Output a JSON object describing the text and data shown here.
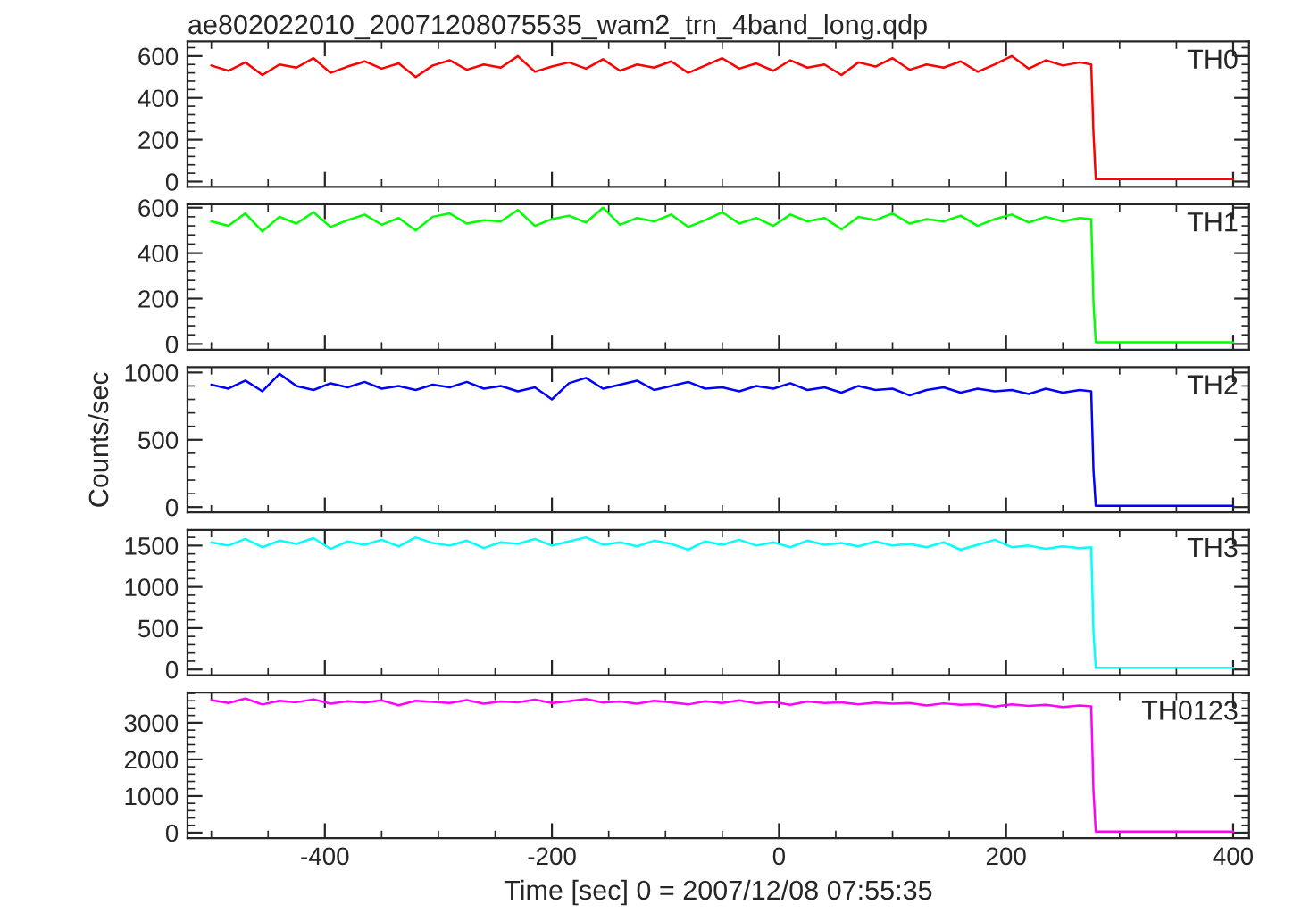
{
  "chart_data": [
    {
      "type": "line",
      "title": "ae802022010_20071208075535_wam2_trn_4band_long.qdp",
      "x": [
        -500,
        -485,
        -470,
        -455,
        -440,
        -425,
        -410,
        -395,
        -380,
        -365,
        -350,
        -335,
        -320,
        -305,
        -290,
        -275,
        -260,
        -245,
        -230,
        -215,
        -200,
        -185,
        -170,
        -155,
        -140,
        -125,
        -110,
        -95,
        -80,
        -65,
        -50,
        -35,
        -20,
        -5,
        10,
        25,
        40,
        55,
        70,
        85,
        100,
        115,
        130,
        145,
        160,
        175,
        190,
        205,
        220,
        235,
        250,
        265,
        275,
        277,
        279,
        400
      ],
      "xlim": [
        -521,
        414
      ],
      "xticks": [
        {
          "value": -400,
          "label": null
        },
        {
          "value": -200,
          "label": null
        },
        {
          "value": 0,
          "label": null
        },
        {
          "value": 200,
          "label": null
        },
        {
          "value": 400,
          "label": null
        }
      ],
      "ylim": [
        -25,
        670
      ],
      "yticks": [
        0,
        200,
        400,
        600
      ],
      "tick_labels": "y",
      "series": [
        {
          "name": "TH0",
          "color": "#ff0000",
          "values": [
            555,
            530,
            570,
            510,
            560,
            545,
            590,
            520,
            550,
            575,
            540,
            565,
            500,
            555,
            580,
            535,
            560,
            545,
            600,
            525,
            550,
            570,
            540,
            585,
            530,
            560,
            545,
            575,
            520,
            555,
            590,
            540,
            565,
            530,
            580,
            545,
            560,
            510,
            570,
            550,
            590,
            535,
            560,
            545,
            575,
            525,
            560,
            600,
            540,
            580,
            555,
            570,
            560,
            230,
            12,
            12
          ]
        }
      ]
    },
    {
      "type": "line",
      "x": [
        -500,
        -485,
        -470,
        -455,
        -440,
        -425,
        -410,
        -395,
        -380,
        -365,
        -350,
        -335,
        -320,
        -305,
        -290,
        -275,
        -260,
        -245,
        -230,
        -215,
        -200,
        -185,
        -170,
        -155,
        -140,
        -125,
        -110,
        -95,
        -80,
        -65,
        -50,
        -35,
        -20,
        -5,
        10,
        25,
        40,
        55,
        70,
        85,
        100,
        115,
        130,
        145,
        160,
        175,
        190,
        205,
        220,
        235,
        250,
        265,
        275,
        277,
        279,
        400
      ],
      "xlim": [
        -521,
        414
      ],
      "xticks": [
        {
          "value": -400,
          "label": null
        },
        {
          "value": -200,
          "label": null
        },
        {
          "value": 0,
          "label": null
        },
        {
          "value": 200,
          "label": null
        },
        {
          "value": 400,
          "label": null
        }
      ],
      "ylim": [
        -25,
        615
      ],
      "yticks": [
        0,
        200,
        400,
        600
      ],
      "tick_labels": "y",
      "series": [
        {
          "name": "TH1",
          "color": "#00ff00",
          "values": [
            540,
            520,
            575,
            495,
            560,
            530,
            580,
            515,
            545,
            570,
            525,
            555,
            500,
            560,
            575,
            530,
            545,
            540,
            590,
            520,
            550,
            565,
            535,
            600,
            525,
            555,
            540,
            570,
            515,
            545,
            580,
            530,
            555,
            520,
            570,
            540,
            555,
            505,
            560,
            545,
            575,
            530,
            550,
            540,
            565,
            520,
            550,
            570,
            535,
            560,
            540,
            555,
            550,
            180,
            8,
            8
          ]
        }
      ]
    },
    {
      "type": "line",
      "ylabel": "Counts/sec",
      "x": [
        -500,
        -485,
        -470,
        -455,
        -440,
        -425,
        -410,
        -395,
        -380,
        -365,
        -350,
        -335,
        -320,
        -305,
        -290,
        -275,
        -260,
        -245,
        -230,
        -215,
        -200,
        -185,
        -170,
        -155,
        -140,
        -125,
        -110,
        -95,
        -80,
        -65,
        -50,
        -35,
        -20,
        -5,
        10,
        25,
        40,
        55,
        70,
        85,
        100,
        115,
        130,
        145,
        160,
        175,
        190,
        205,
        220,
        235,
        250,
        265,
        275,
        277,
        279,
        400
      ],
      "xlim": [
        -521,
        414
      ],
      "xticks": [
        {
          "value": -400,
          "label": null
        },
        {
          "value": -200,
          "label": null
        },
        {
          "value": 0,
          "label": null
        },
        {
          "value": 200,
          "label": null
        },
        {
          "value": 400,
          "label": null
        }
      ],
      "ylim": [
        -40,
        1040
      ],
      "yticks": [
        0,
        500,
        1000
      ],
      "tick_labels": "y",
      "series": [
        {
          "name": "TH2",
          "color": "#0000ff",
          "values": [
            910,
            880,
            940,
            860,
            990,
            900,
            870,
            920,
            890,
            930,
            880,
            900,
            870,
            910,
            890,
            930,
            880,
            900,
            860,
            890,
            800,
            920,
            960,
            880,
            910,
            940,
            870,
            900,
            930,
            880,
            890,
            860,
            900,
            880,
            920,
            870,
            890,
            850,
            900,
            870,
            880,
            830,
            870,
            890,
            850,
            880,
            860,
            870,
            840,
            880,
            850,
            870,
            860,
            270,
            10,
            10
          ]
        }
      ]
    },
    {
      "type": "line",
      "x": [
        -500,
        -485,
        -470,
        -455,
        -440,
        -425,
        -410,
        -395,
        -380,
        -365,
        -350,
        -335,
        -320,
        -305,
        -290,
        -275,
        -260,
        -245,
        -230,
        -215,
        -200,
        -185,
        -170,
        -155,
        -140,
        -125,
        -110,
        -95,
        -80,
        -65,
        -50,
        -35,
        -20,
        -5,
        10,
        25,
        40,
        55,
        70,
        85,
        100,
        115,
        130,
        145,
        160,
        175,
        190,
        205,
        220,
        235,
        250,
        265,
        275,
        277,
        279,
        400
      ],
      "xlim": [
        -521,
        414
      ],
      "xticks": [
        {
          "value": -400,
          "label": null
        },
        {
          "value": -200,
          "label": null
        },
        {
          "value": 0,
          "label": null
        },
        {
          "value": 200,
          "label": null
        },
        {
          "value": 400,
          "label": null
        }
      ],
      "ylim": [
        -70,
        1690
      ],
      "yticks": [
        0,
        500,
        1000,
        1500
      ],
      "tick_labels": "y",
      "series": [
        {
          "name": "TH3",
          "color": "#00ffff",
          "values": [
            1540,
            1500,
            1580,
            1480,
            1560,
            1520,
            1590,
            1460,
            1550,
            1510,
            1570,
            1490,
            1600,
            1530,
            1500,
            1560,
            1470,
            1540,
            1520,
            1580,
            1500,
            1550,
            1600,
            1510,
            1540,
            1490,
            1560,
            1520,
            1450,
            1550,
            1510,
            1570,
            1500,
            1540,
            1480,
            1560,
            1510,
            1530,
            1490,
            1550,
            1500,
            1520,
            1480,
            1540,
            1450,
            1510,
            1570,
            1480,
            1500,
            1460,
            1490,
            1470,
            1480,
            450,
            20,
            20
          ]
        }
      ]
    },
    {
      "type": "line",
      "xlabel": "Time [sec] 0 = 2007/12/08 07:55:35",
      "x": [
        -500,
        -485,
        -470,
        -455,
        -440,
        -425,
        -410,
        -395,
        -380,
        -365,
        -350,
        -335,
        -320,
        -305,
        -290,
        -275,
        -260,
        -245,
        -230,
        -215,
        -200,
        -185,
        -170,
        -155,
        -140,
        -125,
        -110,
        -95,
        -80,
        -65,
        -50,
        -35,
        -20,
        -5,
        10,
        25,
        40,
        55,
        70,
        85,
        100,
        115,
        130,
        145,
        160,
        175,
        190,
        205,
        220,
        235,
        250,
        265,
        275,
        277,
        279,
        400
      ],
      "xlim": [
        -521,
        414
      ],
      "xticks": [
        -400,
        -200,
        0,
        200,
        400
      ],
      "ylim": [
        -150,
        3820
      ],
      "yticks": [
        0,
        1000,
        2000,
        3000
      ],
      "series": [
        {
          "name": "TH0123",
          "color": "#ff00ff",
          "values": [
            3620,
            3540,
            3660,
            3500,
            3600,
            3560,
            3640,
            3520,
            3590,
            3550,
            3610,
            3480,
            3600,
            3570,
            3540,
            3620,
            3520,
            3580,
            3560,
            3630,
            3540,
            3590,
            3650,
            3550,
            3580,
            3520,
            3600,
            3560,
            3500,
            3590,
            3540,
            3610,
            3530,
            3570,
            3490,
            3580,
            3540,
            3560,
            3500,
            3550,
            3520,
            3540,
            3470,
            3530,
            3490,
            3510,
            3440,
            3500,
            3460,
            3490,
            3430,
            3470,
            3450,
            1130,
            30,
            30
          ]
        }
      ]
    }
  ]
}
